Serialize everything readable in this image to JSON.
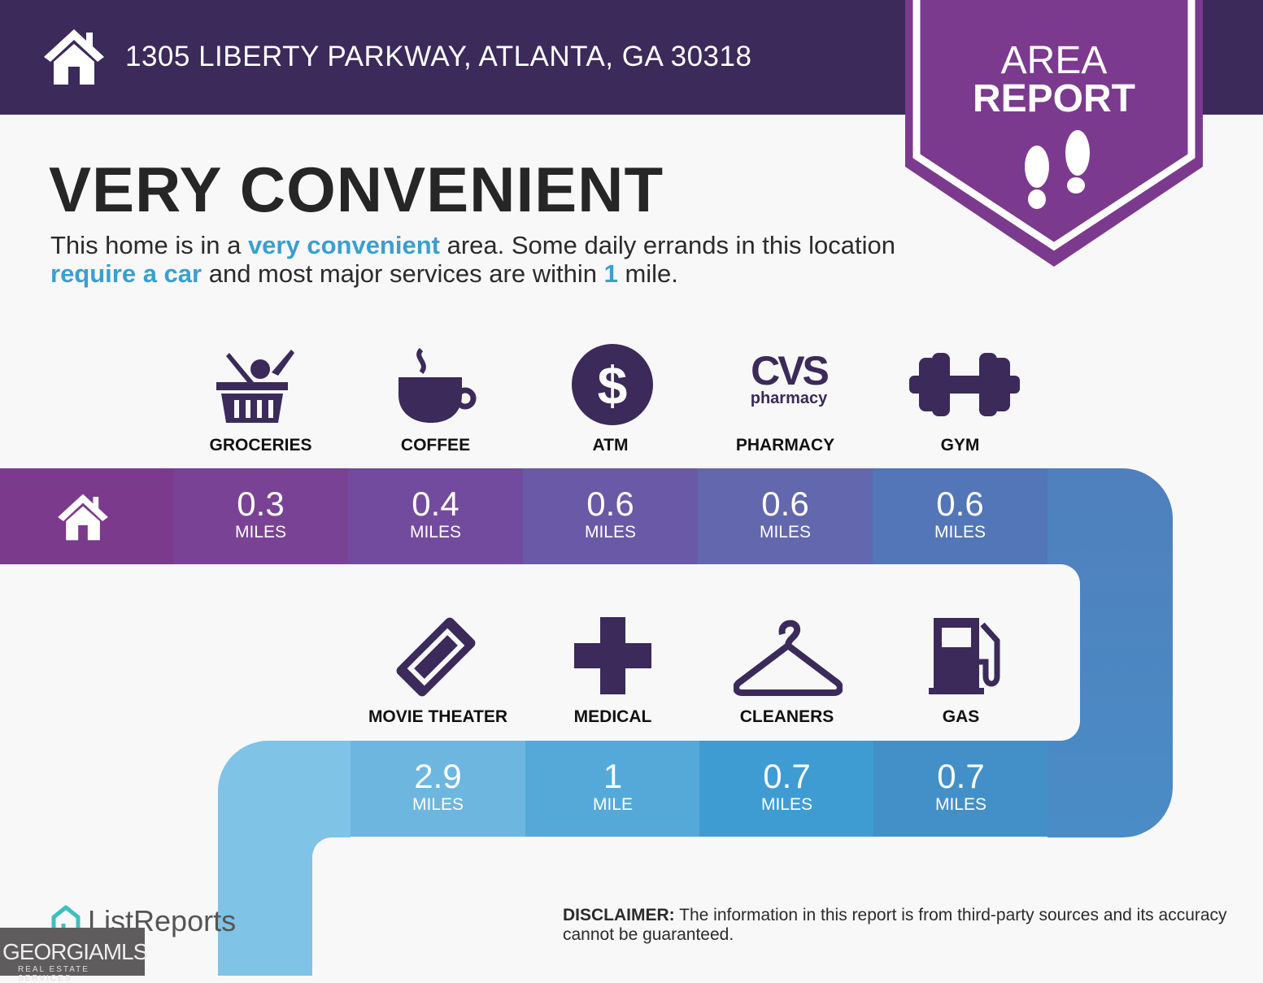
{
  "header": {
    "address": "1305 LIBERTY PARKWAY, ATLANTA, GA 30318",
    "badge_line1": "AREA",
    "badge_line2": "REPORT"
  },
  "summary": {
    "title": "VERY CONVENIENT",
    "desc_1": "This home is in a ",
    "desc_hl1": "very convenient",
    "desc_2": " area. Some daily errands in this location ",
    "desc_hl2": "require a car",
    "desc_3": " and most major services are within ",
    "desc_hl3": "1",
    "desc_4": " mile."
  },
  "row1": [
    {
      "label": "GROCERIES",
      "value": "0.3",
      "unit": "MILES",
      "icon": "grocery-basket-icon",
      "color": "#7a4295"
    },
    {
      "label": "COFFEE",
      "value": "0.4",
      "unit": "MILES",
      "icon": "coffee-cup-icon",
      "color": "#734b9e"
    },
    {
      "label": "ATM",
      "value": "0.6",
      "unit": "MILES",
      "icon": "dollar-icon",
      "color": "#6a59a7"
    },
    {
      "label": "PHARMACY",
      "value": "0.6",
      "unit": "MILES",
      "icon": "cvs-pharmacy-logo",
      "logo_text": "CVS",
      "logo_sub": "pharmacy",
      "color": "#6367ae"
    },
    {
      "label": "GYM",
      "value": "0.6",
      "unit": "MILES",
      "icon": "dumbbell-icon",
      "color": "#5276b7"
    }
  ],
  "row2": [
    {
      "label": "MOVIE THEATER",
      "value": "2.9",
      "unit": "MILES",
      "icon": "ticket-icon",
      "color": "#6cb6e0"
    },
    {
      "label": "MEDICAL",
      "value": "1",
      "unit": "MILE",
      "icon": "medical-cross-icon",
      "color": "#55a9d9"
    },
    {
      "label": "CLEANERS",
      "value": "0.7",
      "unit": "MILES",
      "icon": "hanger-icon",
      "color": "#3f9cd2"
    },
    {
      "label": "GAS",
      "value": "0.7",
      "unit": "MILES",
      "icon": "gas-pump-icon",
      "color": "#4390c9"
    }
  ],
  "colors": {
    "header": "#3b2a5a",
    "badge": "#7b3a8e",
    "accent": "#3a9fd0",
    "icon": "#3b2a5a"
  },
  "footer": {
    "brand": "ListReports",
    "mls": "GEORGIAMLS",
    "mls_sub": "REAL ESTATE SERVICES",
    "disclaimer_label": "DISCLAIMER:",
    "disclaimer": " The information in this report is from third-party sources and its accuracy cannot be guaranteed."
  }
}
